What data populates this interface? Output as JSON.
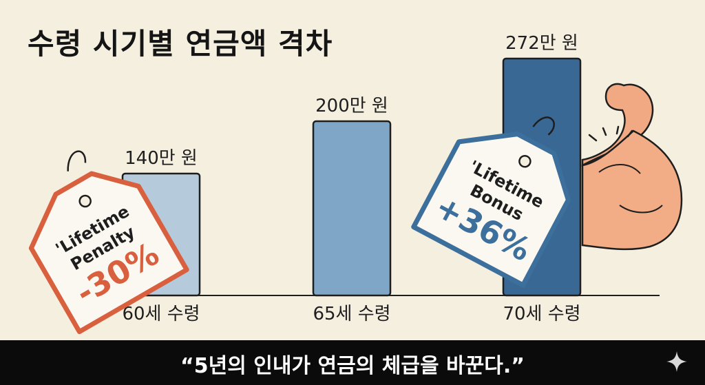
{
  "chart_data": {
    "type": "bar",
    "title": "수령 시기별 연금액 격차",
    "categories": [
      "60세 수령",
      "65세 수령",
      "70세 수령"
    ],
    "values": [
      140,
      200,
      272
    ],
    "value_labels": [
      "140만 원",
      "200만 원",
      "272만 원"
    ],
    "unit": "만 원",
    "ylim": [
      0,
      290
    ],
    "grid": false,
    "legend": "none",
    "bar_colors": [
      "#b5cadb",
      "#7fa6c6",
      "#3a6895"
    ],
    "tags": [
      {
        "lines": [
          "'Lifetime",
          "Penalty"
        ],
        "value": "-30%",
        "color": "#d9603f",
        "attached_to": "60세 수령"
      },
      {
        "lines": [
          "'Lifetime",
          "Bonus"
        ],
        "value": "+36%",
        "color": "#3c6f9c",
        "attached_to": "70세 수령"
      }
    ]
  },
  "caption": "“5년의 인내가 연금의 체급을 바꾼다.”",
  "icons": {
    "flexed_arm": "flexed-arm-icon",
    "sparkle": "sparkle-icon"
  }
}
